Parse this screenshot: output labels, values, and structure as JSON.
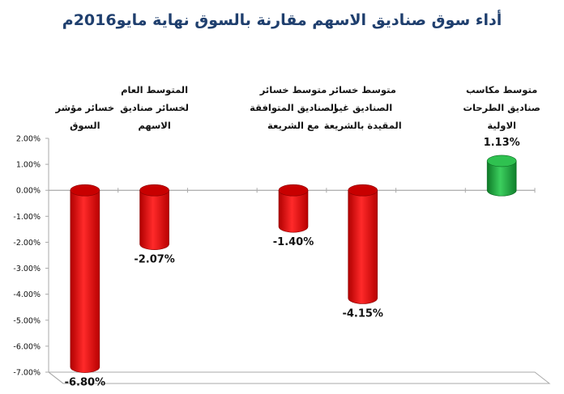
{
  "chart_data": {
    "type": "bar",
    "title": "أداء سوق صناديق الاسهم مقارنة بالسوق نهاية مايو2016م",
    "categories": [
      "خسائر مؤشر السوق",
      "المتوسط العام لخسائر صناديق الاسهم",
      "",
      "متوسط خسائر الصناديق المتوافقة مع الشريعة",
      "متوسط خسائر الصناديق غير المقيدة بالشريعة",
      "",
      "متوسط مكاسب صناديق الطرحات الاولية"
    ],
    "values": [
      -6.8,
      -2.07,
      null,
      -1.4,
      -4.15,
      null,
      1.13
    ],
    "value_labels": [
      "-6.80%",
      "-2.07%",
      "",
      "-1.40%",
      "-4.15%",
      "",
      "1.13%"
    ],
    "ylim": [
      -7.0,
      2.0
    ],
    "yticks": [
      2.0,
      1.0,
      0.0,
      -1.0,
      -2.0,
      -3.0,
      -4.0,
      -5.0,
      -6.0,
      -7.0
    ],
    "ytick_labels": [
      "2.00%",
      "1.00%",
      "0.00%",
      "-1.00%",
      "-2.00%",
      "-3.00%",
      "-4.00%",
      "-5.00%",
      "-6.00%",
      "-7.00%"
    ],
    "grid": false,
    "colors": {
      "negative": "#e00000",
      "positive": "#1a9a3a",
      "text": "#111111",
      "axis": "#aaaaaa"
    }
  }
}
